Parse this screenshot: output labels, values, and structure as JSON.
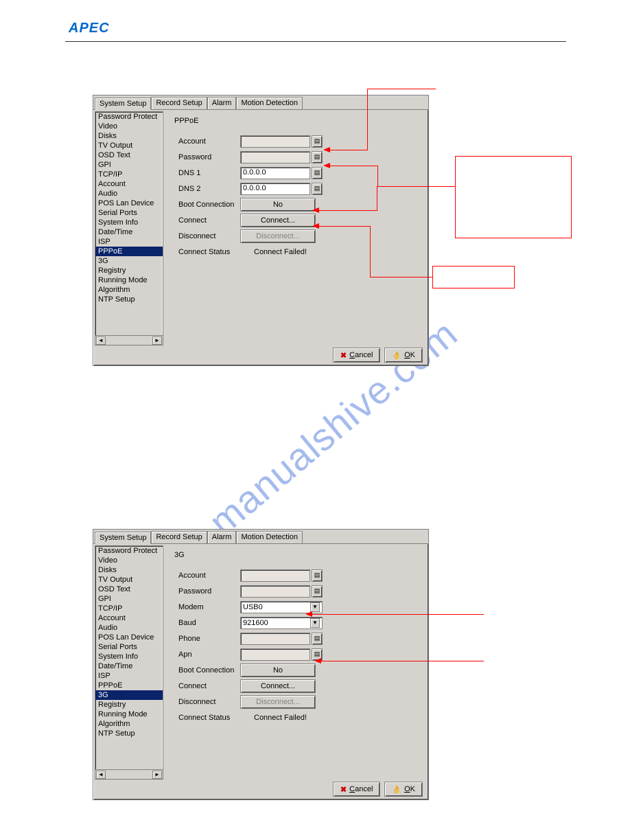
{
  "header": {
    "logo": "APEC"
  },
  "watermark": "manualshive.com",
  "tabs": [
    "System Setup",
    "Record Setup",
    "Alarm",
    "Motion Detection"
  ],
  "sidebar_items": [
    "Password Protect",
    "Video",
    "Disks",
    "TV Output",
    "OSD Text",
    "GPI",
    "TCP/IP",
    "Account",
    "Audio",
    "POS Lan Device",
    "Serial Ports",
    "System Info",
    "Date/Time",
    "ISP",
    "PPPoE",
    "3G",
    "Registry",
    "Running Mode",
    "Algorithm",
    "NTP Setup"
  ],
  "dialog1": {
    "selected_sidebar": "PPPoE",
    "active_tab": 0,
    "title": "PPPoE",
    "rows": {
      "account_label": "Account",
      "account_value": "",
      "password_label": "Password",
      "password_value": "",
      "dns1_label": "DNS 1",
      "dns1_value": "0.0.0.0",
      "dns2_label": "DNS 2",
      "dns2_value": "0.0.0.0",
      "boot_label": "Boot Connection",
      "boot_value": "No",
      "connect_label": "Connect",
      "connect_btn": "Connect...",
      "disconnect_label": "Disconnect",
      "disconnect_btn": "Disconnect...",
      "status_label": "Connect Status",
      "status_value": "Connect Failed!"
    }
  },
  "dialog2": {
    "selected_sidebar": "3G",
    "active_tab": 0,
    "title": "3G",
    "rows": {
      "account_label": "Account",
      "account_value": "",
      "password_label": "Password",
      "password_value": "",
      "modem_label": "Modem",
      "modem_value": "USB0",
      "baud_label": "Baud",
      "baud_value": "921600",
      "phone_label": "Phone",
      "phone_value": "",
      "apn_label": "Apn",
      "apn_value": "",
      "boot_label": "Boot Connection",
      "boot_value": "No",
      "connect_label": "Connect",
      "connect_btn": "Connect...",
      "disconnect_label": "Disconnect",
      "disconnect_btn": "Disconnect...",
      "status_label": "Connect Status",
      "status_value": "Connect Failed!"
    }
  },
  "footer": {
    "cancel": "Cancel",
    "ok": "OK"
  },
  "colors": {
    "dialog_bg": "#d6d3ce",
    "selection_bg": "#0a246a",
    "accent_red": "#ff0000",
    "logo_blue": "#0066cc",
    "watermark_blue": "#3a6bd8"
  }
}
